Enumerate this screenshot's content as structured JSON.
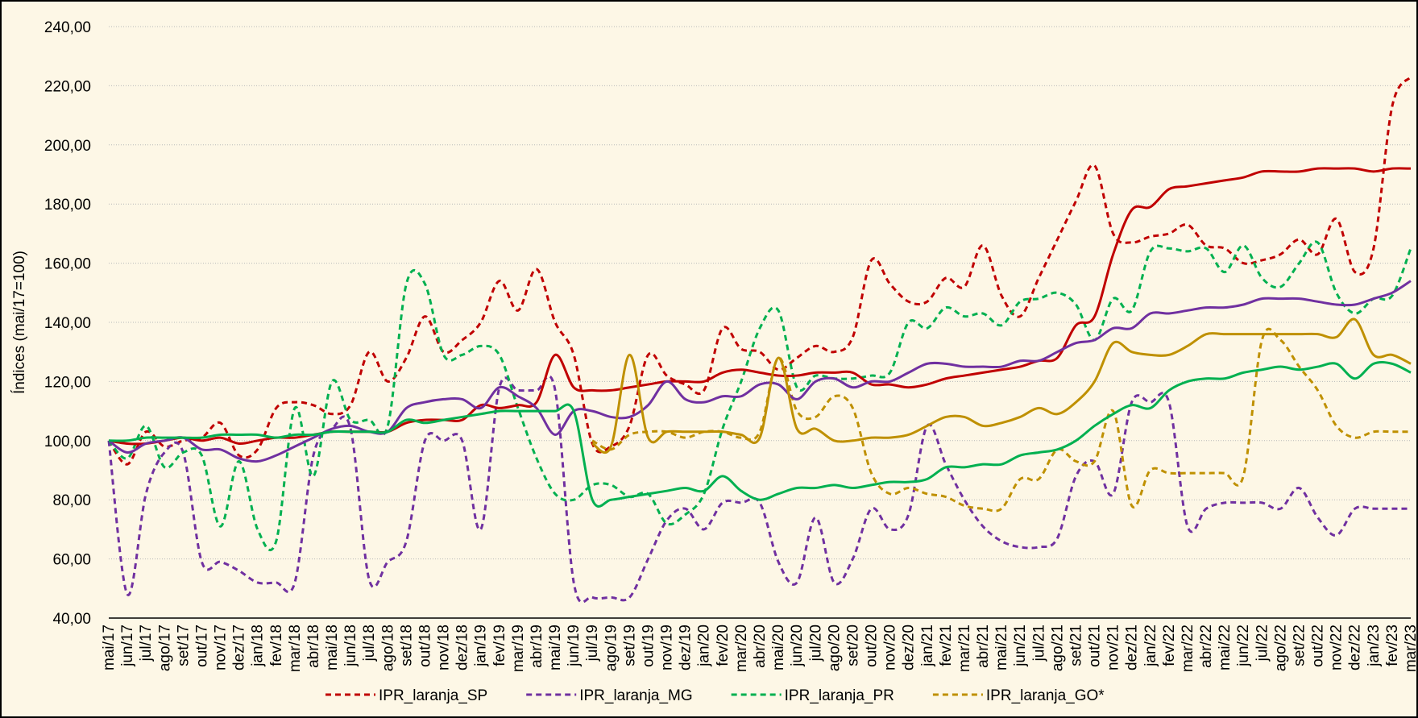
{
  "chart_data": {
    "type": "line",
    "y_label": "Índices (mai/17=100)",
    "ylim": [
      40,
      240
    ],
    "yticks": [
      {
        "value": 40,
        "label": "40,00"
      },
      {
        "value": 60,
        "label": "60,00"
      },
      {
        "value": 80,
        "label": "80,00"
      },
      {
        "value": 100,
        "label": "100,00"
      },
      {
        "value": 120,
        "label": "120,00"
      },
      {
        "value": 140,
        "label": "140,00"
      },
      {
        "value": 160,
        "label": "160,00"
      },
      {
        "value": 180,
        "label": "180,00"
      },
      {
        "value": 200,
        "label": "200,00"
      },
      {
        "value": 220,
        "label": "220,00"
      },
      {
        "value": 240,
        "label": "240,00"
      }
    ],
    "grid": true,
    "legend": "bottom",
    "categories": [
      "mai/17",
      "jun/17",
      "jul/17",
      "ago/17",
      "set/17",
      "out/17",
      "nov/17",
      "dez/17",
      "jan/18",
      "fev/18",
      "mar/18",
      "abr/18",
      "mai/18",
      "jun/18",
      "jul/18",
      "ago/18",
      "set/18",
      "out/18",
      "nov/18",
      "dez/18",
      "jan/19",
      "fev/19",
      "mar/19",
      "abr/19",
      "mai/19",
      "jun/19",
      "jul/19",
      "ago/19",
      "set/19",
      "out/19",
      "nov/19",
      "dez/19",
      "jan/20",
      "fev/20",
      "mar/20",
      "abr/20",
      "mai/20",
      "jun/20",
      "jul/20",
      "ago/20",
      "set/20",
      "out/20",
      "nov/20",
      "dez/20",
      "jan/21",
      "fev/21",
      "mar/21",
      "abr/21",
      "mai/21",
      "jun/21",
      "jul/21",
      "ago/21",
      "set/21",
      "out/21",
      "nov/21",
      "dez/21",
      "jan/22",
      "fev/22",
      "mar/22",
      "abr/22",
      "mai/22",
      "jun/22",
      "jul/22",
      "ago/22",
      "set/22",
      "out/22",
      "nov/22",
      "dez/22",
      "jan/23",
      "fev/23",
      "mar/23"
    ],
    "series": [
      {
        "name": "IPR_laranja_SP",
        "color": "#c00000",
        "dashed": true,
        "values": [
          100,
          92,
          103,
          98,
          100,
          101,
          106,
          95,
          97,
          111,
          113,
          112,
          109,
          112,
          130,
          120,
          128,
          142,
          130,
          134,
          140,
          154,
          144,
          158,
          140,
          129,
          99,
          98,
          105,
          129,
          122,
          119,
          117,
          138,
          131,
          130,
          124,
          128,
          132,
          130,
          135,
          161,
          153,
          147,
          147,
          155,
          152,
          166,
          149,
          142,
          155,
          168,
          181,
          193,
          170,
          167,
          169,
          170,
          173,
          166,
          165,
          160,
          161,
          163,
          168,
          163,
          175,
          157,
          165,
          213,
          223
        ]
      },
      {
        "name": "IPR_laranja_MG",
        "color": "#7030a0",
        "dashed": true,
        "values": [
          100,
          48,
          82,
          96,
          96,
          59,
          59,
          56,
          52,
          52,
          52,
          95,
          104,
          104,
          53,
          59,
          66,
          100,
          100,
          100,
          70,
          118,
          117,
          117,
          117,
          52,
          47,
          47,
          47,
          60,
          73,
          77,
          70,
          79,
          79,
          79,
          59,
          52,
          74,
          52,
          60,
          77,
          70,
          75,
          105,
          92,
          80,
          71,
          66,
          64,
          64,
          67,
          88,
          93,
          82,
          113,
          113,
          113,
          71,
          77,
          79,
          79,
          79,
          77,
          84,
          74,
          68,
          77,
          77,
          77,
          77
        ]
      },
      {
        "name": "IPR_laranja_PR",
        "color": "#00b050",
        "dashed": true,
        "values": [
          100,
          94,
          105,
          91,
          96,
          95,
          71,
          93,
          70,
          66,
          111,
          88,
          120,
          107,
          107,
          105,
          153,
          153,
          129,
          129,
          132,
          129,
          111,
          94,
          82,
          80,
          85,
          85,
          81,
          82,
          72,
          75,
          82,
          104,
          120,
          138,
          144,
          118,
          122,
          121,
          121,
          122,
          123,
          140,
          138,
          145,
          142,
          143,
          139,
          147,
          148,
          150,
          146,
          134,
          148,
          144,
          164,
          165,
          164,
          165,
          157,
          166,
          155,
          152,
          160,
          167,
          150,
          143,
          148,
          149,
          165
        ]
      },
      {
        "name": "IPR_laranja_GO*",
        "color": "#bf9000",
        "dashed": true,
        "values": [
          null,
          null,
          null,
          null,
          null,
          null,
          null,
          null,
          null,
          null,
          null,
          null,
          null,
          null,
          null,
          null,
          null,
          null,
          null,
          null,
          null,
          null,
          null,
          null,
          null,
          null,
          100,
          97,
          102,
          103,
          103,
          101,
          103,
          103,
          101,
          103,
          128,
          110,
          108,
          115,
          111,
          89,
          82,
          84,
          82,
          81,
          78,
          77,
          77,
          87,
          87,
          97,
          93,
          93,
          110,
          78,
          90,
          89,
          89,
          89,
          89,
          88,
          134,
          134,
          125,
          117,
          105,
          101,
          103,
          103,
          103
        ]
      },
      {
        "color": "#c00000",
        "dashed": false,
        "values": [
          100,
          99,
          99,
          100,
          101,
          100,
          101,
          99,
          100,
          101,
          101,
          102,
          103,
          103,
          103,
          103,
          106,
          107,
          107,
          107,
          112,
          111,
          112,
          113,
          129,
          118,
          117,
          117,
          118,
          119,
          120,
          120,
          120,
          123,
          124,
          123,
          122,
          122,
          123,
          123,
          123,
          119,
          119,
          118,
          119,
          121,
          122,
          123,
          124,
          125,
          127,
          128,
          139,
          142,
          163,
          178,
          179,
          185,
          186,
          187,
          188,
          189,
          191,
          191,
          191,
          192,
          192,
          192,
          191,
          192,
          192
        ]
      },
      {
        "color": "#7030a0",
        "dashed": false,
        "values": [
          100,
          96,
          99,
          100,
          101,
          97,
          97,
          94,
          93,
          95,
          98,
          101,
          104,
          105,
          103,
          103,
          111,
          113,
          114,
          114,
          111,
          118,
          115,
          111,
          102,
          110,
          110,
          108,
          108,
          112,
          120,
          114,
          113,
          115,
          115,
          119,
          119,
          114,
          120,
          121,
          118,
          120,
          120,
          123,
          126,
          126,
          125,
          125,
          125,
          127,
          127,
          130,
          133,
          134,
          138,
          138,
          143,
          143,
          144,
          145,
          145,
          146,
          148,
          148,
          148,
          147,
          146,
          146,
          148,
          150,
          154
        ]
      },
      {
        "color": "#00b050",
        "dashed": false,
        "values": [
          100,
          100,
          101,
          101,
          101,
          101,
          102,
          102,
          102,
          101,
          102,
          102,
          103,
          103,
          103,
          103,
          107,
          106,
          107,
          108,
          109,
          110,
          110,
          110,
          110,
          110,
          80,
          80,
          81,
          82,
          83,
          84,
          83,
          88,
          83,
          80,
          82,
          84,
          84,
          85,
          84,
          85,
          86,
          86,
          87,
          91,
          91,
          92,
          92,
          95,
          96,
          97,
          100,
          105,
          109,
          112,
          111,
          117,
          120,
          121,
          121,
          123,
          124,
          125,
          124,
          125,
          126,
          121,
          126,
          126,
          123
        ]
      },
      {
        "color": "#bf9000",
        "dashed": false,
        "values": [
          null,
          null,
          null,
          null,
          null,
          null,
          null,
          null,
          null,
          null,
          null,
          null,
          null,
          null,
          null,
          null,
          null,
          null,
          null,
          null,
          null,
          null,
          null,
          null,
          null,
          null,
          99,
          98,
          129,
          101,
          103,
          103,
          103,
          103,
          102,
          101,
          128,
          104,
          104,
          100,
          100,
          101,
          101,
          102,
          105,
          108,
          108,
          105,
          106,
          108,
          111,
          109,
          113,
          120,
          133,
          130,
          129,
          129,
          132,
          136,
          136,
          136,
          136,
          136,
          136,
          136,
          135,
          141,
          129,
          129,
          126
        ]
      }
    ]
  }
}
